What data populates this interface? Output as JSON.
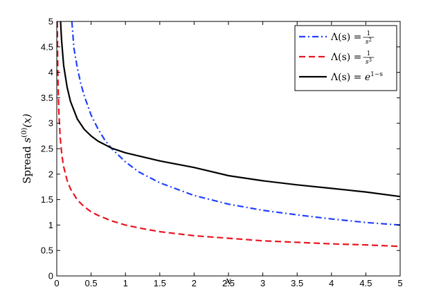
{
  "chart_data": {
    "type": "line",
    "xlabel": "x",
    "ylabel": "Spread s(0)(x)",
    "ylabel_parts": {
      "prefix": "Spread ",
      "base": "s",
      "sup": "(0)",
      "arg": "(x)"
    },
    "xlim": [
      0,
      5
    ],
    "ylim": [
      0,
      5
    ],
    "xticks": [
      "0",
      "0.5",
      "1",
      "1.5",
      "2",
      "2.5",
      "3",
      "3.5",
      "4",
      "4.5",
      "5"
    ],
    "yticks": [
      "0",
      "0.5",
      "1",
      "1.5",
      "2",
      "2.5",
      "3",
      "3.5",
      "4",
      "4.5",
      "5"
    ],
    "grid": false,
    "legend_position": "top-right",
    "series": [
      {
        "name": "Λ(s) = 1/s²",
        "legend": {
          "lhs": "Λ(s) = ",
          "num": "1",
          "den": "s",
          "den_sup": "2"
        },
        "color": "#1f3fff",
        "style": "dashdot",
        "x": [
          0.22,
          0.25,
          0.3,
          0.35,
          0.4,
          0.5,
          0.6,
          0.7,
          0.8,
          1.0,
          1.2,
          1.5,
          2.0,
          2.5,
          3.0,
          3.5,
          4.0,
          4.5,
          5.0
        ],
        "y": [
          5.0,
          4.47,
          4.08,
          3.78,
          3.54,
          3.16,
          2.89,
          2.67,
          2.5,
          2.24,
          2.04,
          1.83,
          1.58,
          1.41,
          1.29,
          1.2,
          1.12,
          1.05,
          1.0
        ]
      },
      {
        "name": "Λ(s) = 1/s³",
        "legend": {
          "lhs": "Λ(s) = ",
          "num": "1",
          "den": "s",
          "den_sup": "3"
        },
        "color": "#e8141e",
        "style": "dashed",
        "x": [
          0.008,
          0.01,
          0.015,
          0.02,
          0.03,
          0.05,
          0.075,
          0.1,
          0.15,
          0.2,
          0.3,
          0.4,
          0.5,
          0.6,
          0.8,
          1.0,
          1.25,
          1.5,
          2.0,
          2.5,
          3.0,
          3.5,
          4.0,
          4.5,
          5.0
        ],
        "y": [
          5.0,
          4.64,
          4.05,
          3.68,
          3.22,
          2.71,
          2.37,
          2.15,
          1.88,
          1.71,
          1.49,
          1.36,
          1.26,
          1.19,
          1.08,
          1.0,
          0.93,
          0.87,
          0.79,
          0.74,
          0.69,
          0.66,
          0.63,
          0.61,
          0.58
        ]
      },
      {
        "name": "Λ(s) = e^(1-s)",
        "legend": {
          "lhs": "Λ(s) = ",
          "base": "e",
          "sup": "1−s"
        },
        "color": "#000000",
        "style": "solid",
        "x": [
          0.055,
          0.07,
          0.1,
          0.15,
          0.2,
          0.3,
          0.4,
          0.5,
          0.6,
          0.8,
          1.0,
          1.25,
          1.5,
          2.0,
          2.5,
          3.0,
          3.5,
          4.0,
          4.5,
          5.0
        ],
        "y": [
          5.0,
          4.64,
          4.14,
          3.71,
          3.43,
          3.08,
          2.88,
          2.75,
          2.65,
          2.51,
          2.42,
          2.34,
          2.26,
          2.13,
          1.97,
          1.87,
          1.79,
          1.72,
          1.65,
          1.56
        ]
      }
    ]
  }
}
